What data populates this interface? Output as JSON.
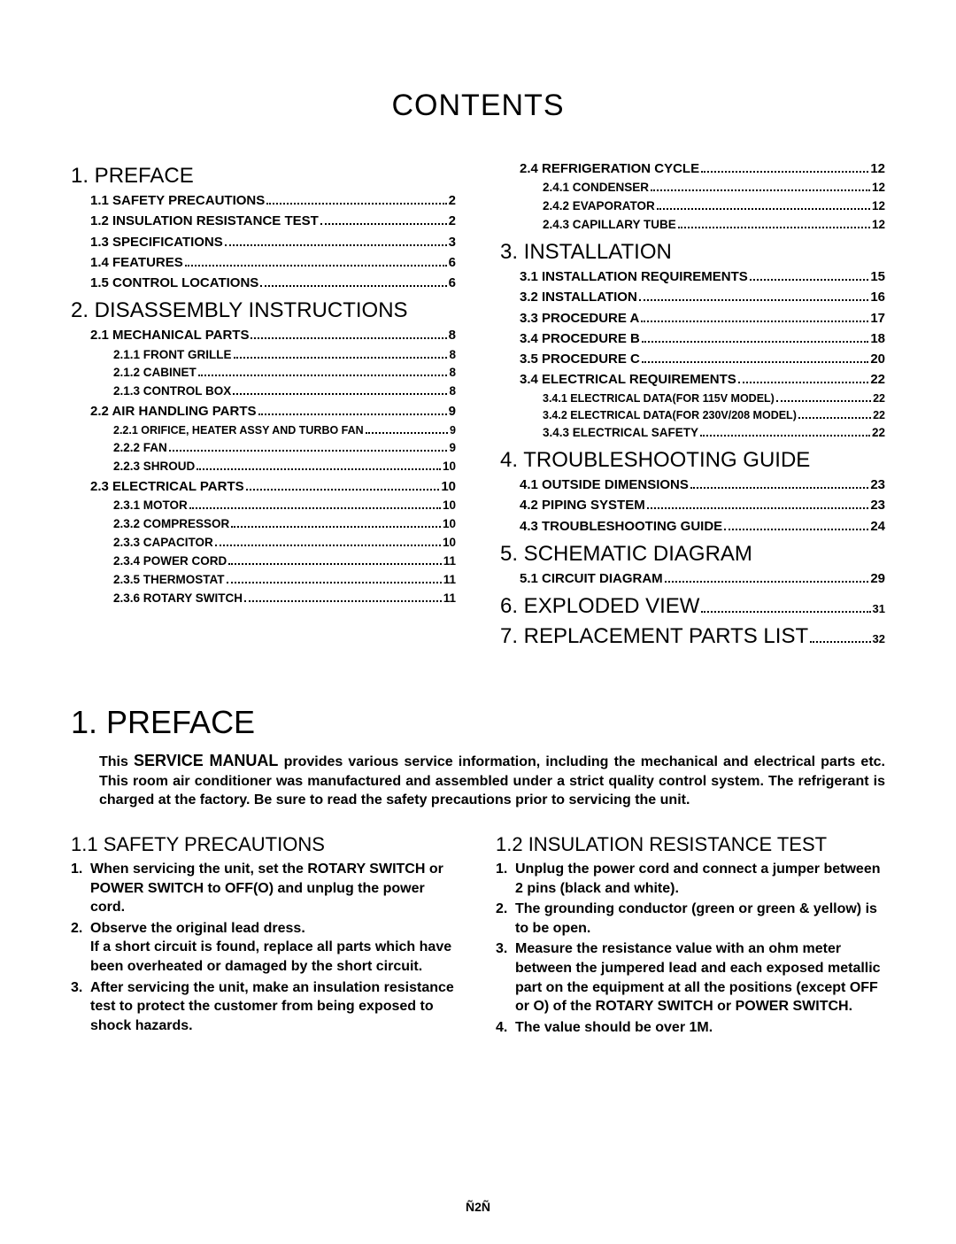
{
  "title": "CONTENTS",
  "toc_left": {
    "sections": [
      {
        "title": "1. PREFACE",
        "items": [
          {
            "label": "1.1 SAFETY PRECAUTIONS",
            "page": "2"
          },
          {
            "label": "1.2 INSULATION RESISTANCE TEST",
            "page": "2"
          },
          {
            "label": "1.3 SPECIFICATIONS",
            "page": "3"
          },
          {
            "label": "1.4 FEATURES",
            "page": "6"
          },
          {
            "label": "1.5 CONTROL LOCATIONS",
            "page": "6"
          }
        ]
      },
      {
        "title": "2. DISASSEMBLY INSTRUCTIONS",
        "items": [
          {
            "label": "2.1 MECHANICAL PARTS",
            "page": "8"
          },
          {
            "label": "2.1.1 FRONT GRILLE",
            "page": "8",
            "sub": true
          },
          {
            "label": "2.1.2 CABINET",
            "page": "8",
            "sub": true
          },
          {
            "label": "2.1.3 CONTROL BOX",
            "page": "8",
            "sub": true
          },
          {
            "label": "2.2 AIR HANDLING PARTS",
            "page": "9"
          },
          {
            "label": "2.2.1 ORIFICE, HEATER ASSY AND TURBO FAN",
            "page": "9",
            "sub2": true
          },
          {
            "label": "2.2.2 FAN",
            "page": "9",
            "sub": true
          },
          {
            "label": "2.2.3 SHROUD",
            "page": "10",
            "sub": true
          },
          {
            "label": "2.3 ELECTRICAL PARTS",
            "page": "10"
          },
          {
            "label": "2.3.1 MOTOR",
            "page": "10",
            "sub": true
          },
          {
            "label": "2.3.2 COMPRESSOR",
            "page": "10",
            "sub": true
          },
          {
            "label": "2.3.3 CAPACITOR",
            "page": "10",
            "sub": true
          },
          {
            "label": "2.3.4 POWER CORD",
            "page": "11",
            "sub": true
          },
          {
            "label": "2.3.5 THERMOSTAT",
            "page": "11",
            "sub": true
          },
          {
            "label": "2.3.6 ROTARY SWITCH",
            "page": "11",
            "sub": true
          }
        ]
      }
    ]
  },
  "toc_right": {
    "sections": [
      {
        "title_items_only": true,
        "items": [
          {
            "label": "2.4 REFRIGERATION CYCLE",
            "page": "12"
          },
          {
            "label": "2.4.1 CONDENSER",
            "page": "12",
            "sub": true
          },
          {
            "label": "2.4.2 EVAPORATOR",
            "page": "12",
            "sub": true
          },
          {
            "label": "2.4.3 CAPILLARY TUBE",
            "page": "12",
            "sub": true
          }
        ]
      },
      {
        "title": "3. INSTALLATION",
        "items": [
          {
            "label": "3.1 INSTALLATION REQUIREMENTS",
            "page": "15"
          },
          {
            "label": "3.2 INSTALLATION",
            "page": "16"
          },
          {
            "label": "3.3 PROCEDURE A",
            "page": "17"
          },
          {
            "label": "3.4 PROCEDURE B",
            "page": "18"
          },
          {
            "label": "3.5 PROCEDURE C",
            "page": "20"
          },
          {
            "label": "3.4 ELECTRICAL REQUIREMENTS",
            "page": "22"
          },
          {
            "label": "3.4.1 ELECTRICAL DATA(FOR 115V MODEL)",
            "page": "22",
            "sub2": true
          },
          {
            "label": "3.4.2 ELECTRICAL DATA(FOR 230V/208 MODEL)",
            "page": "22",
            "sub2": true
          },
          {
            "label": "3.4.3 ELECTRICAL SAFETY",
            "page": "22",
            "sub": true
          }
        ]
      },
      {
        "title": "4. TROUBLESHOOTING GUIDE",
        "items": [
          {
            "label": "4.1 OUTSIDE DIMENSIONS",
            "page": "23"
          },
          {
            "label": "4.2 PIPING SYSTEM",
            "page": "23"
          },
          {
            "label": "4.3 TROUBLESHOOTING GUIDE",
            "page": "24"
          }
        ]
      },
      {
        "title": "5. SCHEMATIC DIAGRAM",
        "items": [
          {
            "label": "5.1 CIRCUIT DIAGRAM",
            "page": "29"
          }
        ]
      },
      {
        "title": "6. EXPLODED VIEW",
        "title_page": "31"
      },
      {
        "title": "7. REPLACEMENT PARTS LIST",
        "title_page": "32"
      }
    ]
  },
  "preface": {
    "heading": "1. PREFACE",
    "intro_pre": "This ",
    "intro_bold": "SERVICE MANUAL",
    "intro_post": " provides various service information, including the mechanical and electrical parts etc. This room air conditioner was manufactured and assembled under a strict quality control system. The refrigerant is charged at the factory. Be sure to read the safety precautions prior to servicing the unit.",
    "left": {
      "heading": "1.1 SAFETY PRECAUTIONS",
      "items": [
        "When servicing the unit, set the ROTARY SWITCH or POWER SWITCH to OFF(O) and unplug the power cord.",
        "Observe the original lead dress.\nIf a short circuit is found, replace all parts which have been overheated or damaged by the short circuit.",
        "After servicing the unit, make an insulation resistance test to protect the customer from being exposed to shock hazards."
      ]
    },
    "right": {
      "heading": "1.2 INSULATION RESISTANCE TEST",
      "items": [
        "Unplug the power cord and connect a jumper between 2 pins (black and white).",
        "The grounding conductor (green or green & yellow) is to be open.",
        "Measure the resistance value with an ohm meter between the jumpered lead and each exposed metallic part on the equipment at all the positions (except OFF or O) of the ROTARY SWITCH or POWER SWITCH.",
        "The value should be over 1M."
      ]
    }
  },
  "footer": "Ñ2Ñ"
}
